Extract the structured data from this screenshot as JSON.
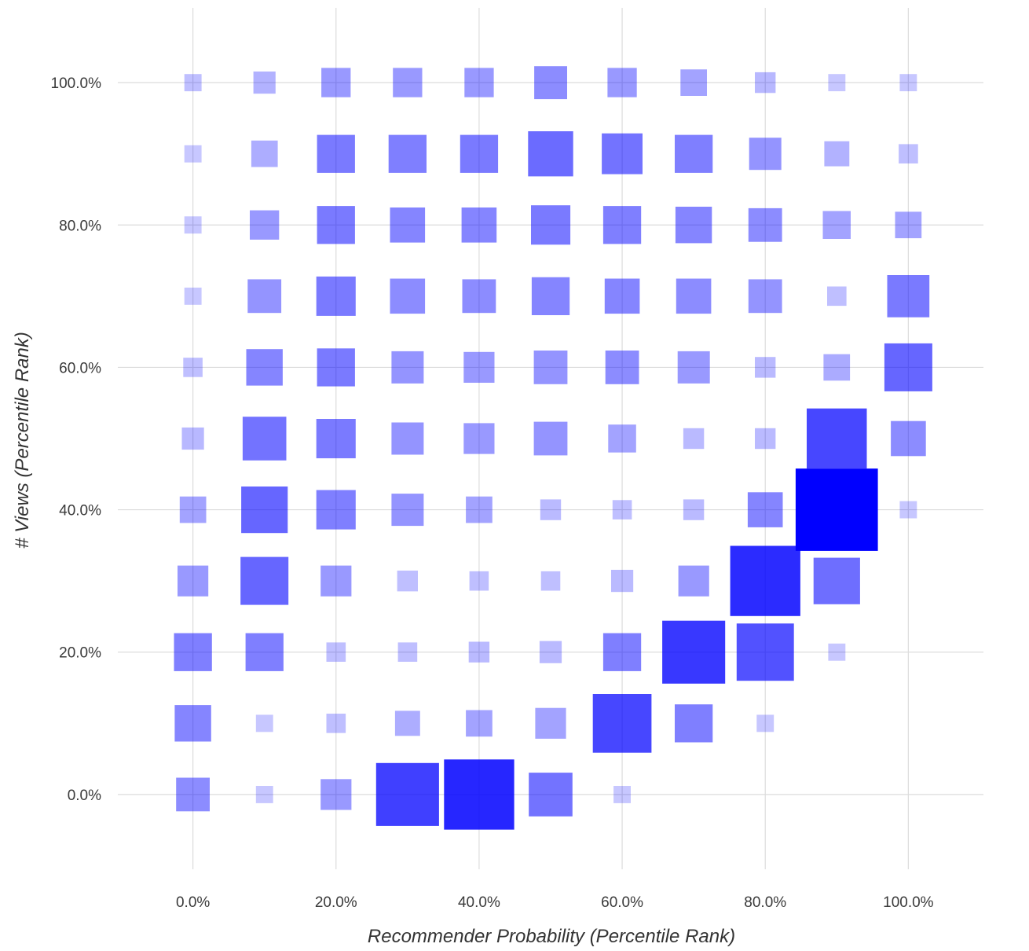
{
  "chart_data": {
    "type": "heatmap",
    "mark": "square",
    "xlabel": "Recommender Probability (Percentile Rank)",
    "ylabel": "# Views (Percentile Rank)",
    "xlim": [
      -0.105,
      1.105
    ],
    "ylim": [
      -0.105,
      1.105
    ],
    "x_ticks": [
      0,
      0.2,
      0.4,
      0.6,
      0.8,
      1.0
    ],
    "y_ticks": [
      0,
      0.2,
      0.4,
      0.6,
      0.8,
      1.0
    ],
    "x_tick_labels": [
      "0.0%",
      "20.0%",
      "40.0%",
      "60.0%",
      "80.0%",
      "100.0%"
    ],
    "y_tick_labels": [
      "0.0%",
      "20.0%",
      "40.0%",
      "60.0%",
      "80.0%",
      "100.0%"
    ],
    "grid": true,
    "color": "#0000ff",
    "bins": [
      0,
      0.1,
      0.2,
      0.3,
      0.4,
      0.5,
      0.6,
      0.7,
      0.8,
      0.9,
      1.0
    ],
    "cells_note": "each row: [x, y, relative_size, relative_opacity]",
    "cells": [
      [
        0.0,
        1.0,
        0.24,
        0.25
      ],
      [
        0.1,
        1.0,
        0.31,
        0.3
      ],
      [
        0.2,
        1.0,
        0.41,
        0.4
      ],
      [
        0.3,
        1.0,
        0.41,
        0.4
      ],
      [
        0.4,
        1.0,
        0.41,
        0.4
      ],
      [
        0.5,
        1.0,
        0.46,
        0.45
      ],
      [
        0.6,
        1.0,
        0.41,
        0.4
      ],
      [
        0.7,
        1.0,
        0.37,
        0.36
      ],
      [
        0.8,
        1.0,
        0.29,
        0.28
      ],
      [
        0.9,
        1.0,
        0.24,
        0.22
      ],
      [
        1.0,
        1.0,
        0.24,
        0.22
      ],
      [
        0.0,
        0.9,
        0.24,
        0.22
      ],
      [
        0.1,
        0.9,
        0.37,
        0.32
      ],
      [
        0.2,
        0.9,
        0.53,
        0.52
      ],
      [
        0.3,
        0.9,
        0.53,
        0.5
      ],
      [
        0.4,
        0.9,
        0.53,
        0.52
      ],
      [
        0.5,
        0.9,
        0.63,
        0.58
      ],
      [
        0.6,
        0.9,
        0.57,
        0.55
      ],
      [
        0.7,
        0.9,
        0.53,
        0.5
      ],
      [
        0.8,
        0.9,
        0.45,
        0.42
      ],
      [
        0.9,
        0.9,
        0.35,
        0.3
      ],
      [
        1.0,
        0.9,
        0.27,
        0.25
      ],
      [
        0.0,
        0.8,
        0.24,
        0.22
      ],
      [
        0.1,
        0.8,
        0.41,
        0.4
      ],
      [
        0.2,
        0.8,
        0.53,
        0.52
      ],
      [
        0.3,
        0.8,
        0.49,
        0.48
      ],
      [
        0.4,
        0.8,
        0.49,
        0.48
      ],
      [
        0.5,
        0.8,
        0.55,
        0.52
      ],
      [
        0.6,
        0.8,
        0.53,
        0.5
      ],
      [
        0.7,
        0.8,
        0.51,
        0.48
      ],
      [
        0.8,
        0.8,
        0.47,
        0.45
      ],
      [
        0.9,
        0.8,
        0.39,
        0.36
      ],
      [
        1.0,
        0.8,
        0.37,
        0.36
      ],
      [
        0.0,
        0.7,
        0.24,
        0.22
      ],
      [
        0.1,
        0.7,
        0.47,
        0.42
      ],
      [
        0.2,
        0.7,
        0.55,
        0.52
      ],
      [
        0.3,
        0.7,
        0.49,
        0.45
      ],
      [
        0.4,
        0.7,
        0.47,
        0.45
      ],
      [
        0.5,
        0.7,
        0.53,
        0.48
      ],
      [
        0.6,
        0.7,
        0.49,
        0.48
      ],
      [
        0.7,
        0.7,
        0.49,
        0.45
      ],
      [
        0.8,
        0.7,
        0.47,
        0.42
      ],
      [
        0.9,
        0.7,
        0.27,
        0.25
      ],
      [
        1.0,
        0.7,
        0.59,
        0.52
      ],
      [
        0.0,
        0.6,
        0.27,
        0.25
      ],
      [
        0.1,
        0.6,
        0.51,
        0.48
      ],
      [
        0.2,
        0.6,
        0.53,
        0.52
      ],
      [
        0.3,
        0.6,
        0.45,
        0.42
      ],
      [
        0.4,
        0.6,
        0.43,
        0.4
      ],
      [
        0.5,
        0.6,
        0.47,
        0.42
      ],
      [
        0.6,
        0.6,
        0.47,
        0.45
      ],
      [
        0.7,
        0.6,
        0.45,
        0.4
      ],
      [
        0.8,
        0.6,
        0.29,
        0.27
      ],
      [
        0.9,
        0.6,
        0.37,
        0.33
      ],
      [
        1.0,
        0.6,
        0.67,
        0.6
      ],
      [
        0.0,
        0.5,
        0.31,
        0.28
      ],
      [
        0.1,
        0.5,
        0.61,
        0.55
      ],
      [
        0.2,
        0.5,
        0.55,
        0.52
      ],
      [
        0.3,
        0.5,
        0.45,
        0.42
      ],
      [
        0.4,
        0.5,
        0.43,
        0.4
      ],
      [
        0.5,
        0.5,
        0.47,
        0.42
      ],
      [
        0.6,
        0.5,
        0.39,
        0.36
      ],
      [
        0.7,
        0.5,
        0.29,
        0.27
      ],
      [
        0.8,
        0.5,
        0.29,
        0.27
      ],
      [
        0.9,
        0.5,
        0.84,
        0.72
      ],
      [
        1.0,
        0.5,
        0.49,
        0.45
      ],
      [
        0.0,
        0.4,
        0.37,
        0.36
      ],
      [
        0.1,
        0.4,
        0.65,
        0.6
      ],
      [
        0.2,
        0.4,
        0.55,
        0.5
      ],
      [
        0.3,
        0.4,
        0.45,
        0.42
      ],
      [
        0.4,
        0.4,
        0.37,
        0.36
      ],
      [
        0.5,
        0.4,
        0.29,
        0.27
      ],
      [
        0.6,
        0.4,
        0.27,
        0.25
      ],
      [
        0.7,
        0.4,
        0.29,
        0.27
      ],
      [
        0.8,
        0.4,
        0.49,
        0.48
      ],
      [
        0.9,
        0.4,
        1.15,
        1.0
      ],
      [
        1.0,
        0.4,
        0.24,
        0.22
      ],
      [
        0.0,
        0.3,
        0.43,
        0.4
      ],
      [
        0.1,
        0.3,
        0.67,
        0.6
      ],
      [
        0.2,
        0.3,
        0.43,
        0.4
      ],
      [
        0.3,
        0.3,
        0.29,
        0.25
      ],
      [
        0.4,
        0.3,
        0.27,
        0.25
      ],
      [
        0.5,
        0.3,
        0.27,
        0.25
      ],
      [
        0.6,
        0.3,
        0.31,
        0.27
      ],
      [
        0.7,
        0.3,
        0.43,
        0.4
      ],
      [
        0.8,
        0.3,
        0.98,
        0.83
      ],
      [
        0.9,
        0.3,
        0.65,
        0.57
      ],
      [
        0.0,
        0.2,
        0.53,
        0.5
      ],
      [
        0.1,
        0.2,
        0.53,
        0.5
      ],
      [
        0.2,
        0.2,
        0.27,
        0.25
      ],
      [
        0.3,
        0.2,
        0.27,
        0.25
      ],
      [
        0.4,
        0.2,
        0.29,
        0.27
      ],
      [
        0.5,
        0.2,
        0.31,
        0.27
      ],
      [
        0.6,
        0.2,
        0.53,
        0.5
      ],
      [
        0.7,
        0.2,
        0.88,
        0.78
      ],
      [
        0.8,
        0.2,
        0.8,
        0.68
      ],
      [
        0.9,
        0.2,
        0.24,
        0.22
      ],
      [
        0.0,
        0.1,
        0.51,
        0.48
      ],
      [
        0.1,
        0.1,
        0.24,
        0.22
      ],
      [
        0.2,
        0.1,
        0.27,
        0.25
      ],
      [
        0.3,
        0.1,
        0.35,
        0.32
      ],
      [
        0.4,
        0.1,
        0.37,
        0.36
      ],
      [
        0.5,
        0.1,
        0.43,
        0.36
      ],
      [
        0.6,
        0.1,
        0.82,
        0.72
      ],
      [
        0.7,
        0.1,
        0.53,
        0.5
      ],
      [
        0.8,
        0.1,
        0.24,
        0.22
      ],
      [
        0.0,
        0.0,
        0.47,
        0.45
      ],
      [
        0.1,
        0.0,
        0.24,
        0.22
      ],
      [
        0.2,
        0.0,
        0.43,
        0.4
      ],
      [
        0.3,
        0.0,
        0.88,
        0.75
      ],
      [
        0.4,
        0.0,
        0.98,
        0.85
      ],
      [
        0.5,
        0.0,
        0.61,
        0.55
      ],
      [
        0.6,
        0.0,
        0.24,
        0.22
      ]
    ]
  }
}
